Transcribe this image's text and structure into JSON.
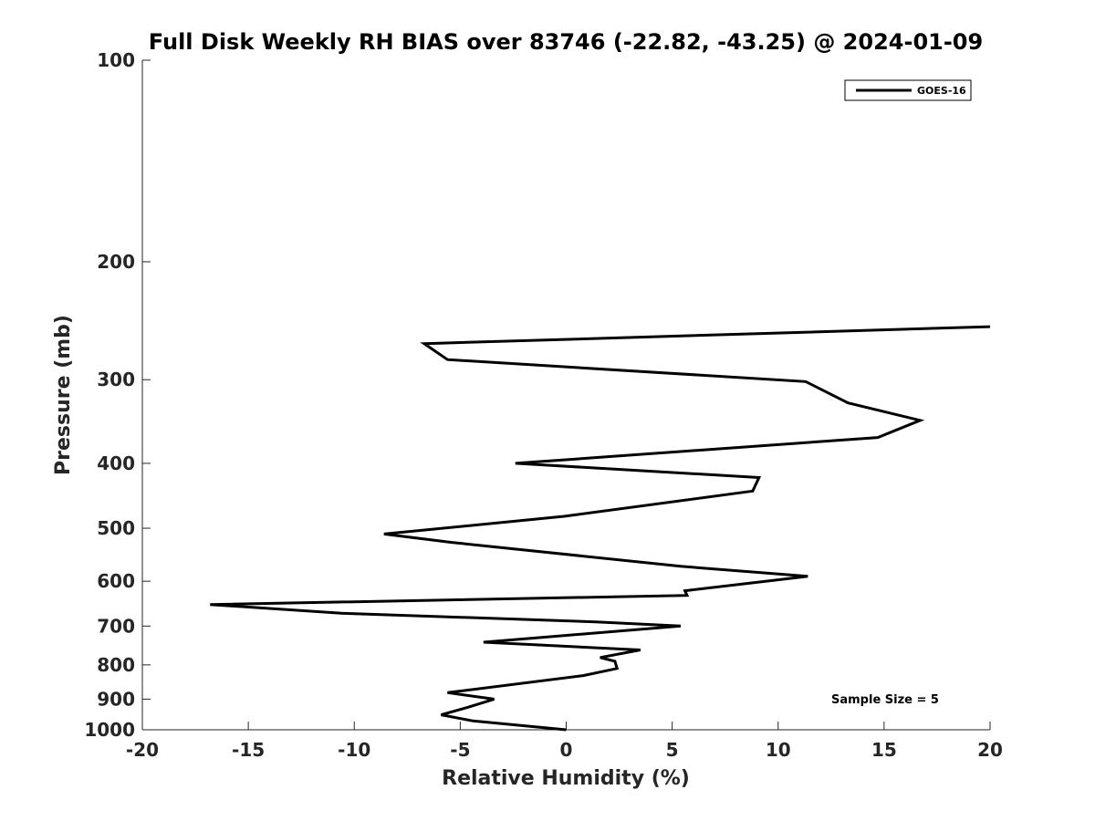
{
  "chart_data": {
    "type": "line",
    "title": "Full Disk Weekly RH BIAS over 83746 (-22.82, -43.25) @ 2024-01-09",
    "xlabel": "Relative Humidity (%)",
    "ylabel": "Pressure (mb)",
    "xlim": [
      -20,
      20
    ],
    "ylim": [
      1000,
      100
    ],
    "y_scale": "log",
    "x_ticks": [
      -20,
      -15,
      -10,
      -5,
      0,
      5,
      10,
      15,
      20
    ],
    "y_ticks": [
      100,
      200,
      300,
      400,
      500,
      600,
      700,
      800,
      900,
      1000
    ],
    "grid": false,
    "legend": {
      "position": "top-right",
      "entries": [
        "GOES-16"
      ]
    },
    "annotation": "Sample Size = 5",
    "series": [
      {
        "name": "GOES-16",
        "color": "#000000",
        "x": [
          20.0,
          -6.7,
          -5.6,
          11.3,
          13.3,
          16.7,
          14.7,
          -2.4,
          9.1,
          8.8,
          -0.1,
          -8.6,
          -5.4,
          5.4,
          11.4,
          5.6,
          5.7,
          -16.8,
          -10.6,
          1.4,
          5.4,
          -3.9,
          3.5,
          1.6,
          2.3,
          2.4,
          0.8,
          -5.6,
          -3.4,
          -4.6,
          -5.9,
          -4.4,
          0.0
        ],
        "y": [
          250,
          265,
          280,
          302,
          325,
          345,
          366,
          400,
          420,
          440,
          480,
          510,
          525,
          570,
          590,
          620,
          630,
          650,
          670,
          690,
          700,
          740,
          760,
          780,
          790,
          810,
          830,
          880,
          900,
          925,
          950,
          970,
          1000
        ]
      }
    ]
  }
}
